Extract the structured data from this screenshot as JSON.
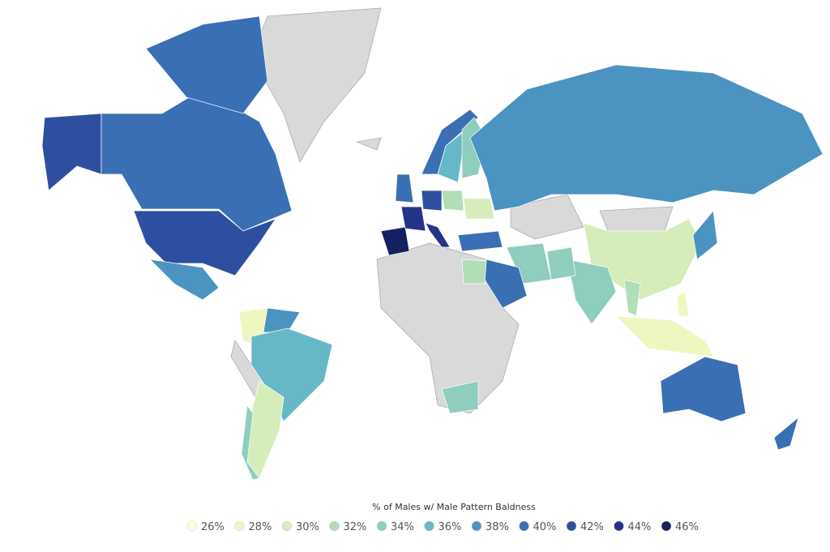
{
  "legend": {
    "title": "% of Males w/ Male Pattern Baldness",
    "items": [
      {
        "value": 26,
        "label": "26%",
        "color": "#fcfdd9"
      },
      {
        "value": 28,
        "label": "28%",
        "color": "#eef7c0"
      },
      {
        "value": 30,
        "label": "30%",
        "color": "#d5edba"
      },
      {
        "value": 32,
        "label": "32%",
        "color": "#b1ddb8"
      },
      {
        "value": 34,
        "label": "34%",
        "color": "#8fcdbe"
      },
      {
        "value": 36,
        "label": "36%",
        "color": "#67b8c6"
      },
      {
        "value": 38,
        "label": "38%",
        "color": "#4b93c0"
      },
      {
        "value": 40,
        "label": "40%",
        "color": "#3a6fb4"
      },
      {
        "value": 42,
        "label": "42%",
        "color": "#2e4fa0"
      },
      {
        "value": 44,
        "label": "44%",
        "color": "#24338a"
      },
      {
        "value": 46,
        "label": "46%",
        "color": "#152060"
      }
    ]
  },
  "regions": {
    "values": [
      42,
      40,
      40,
      42,
      38,
      28,
      38,
      36,
      30,
      34,
      46,
      44,
      44,
      42,
      40,
      40,
      36,
      34,
      32,
      30,
      40,
      38,
      30,
      34,
      34,
      34,
      40,
      32,
      34,
      38,
      28,
      28,
      32,
      40,
      40
    ]
  }
}
